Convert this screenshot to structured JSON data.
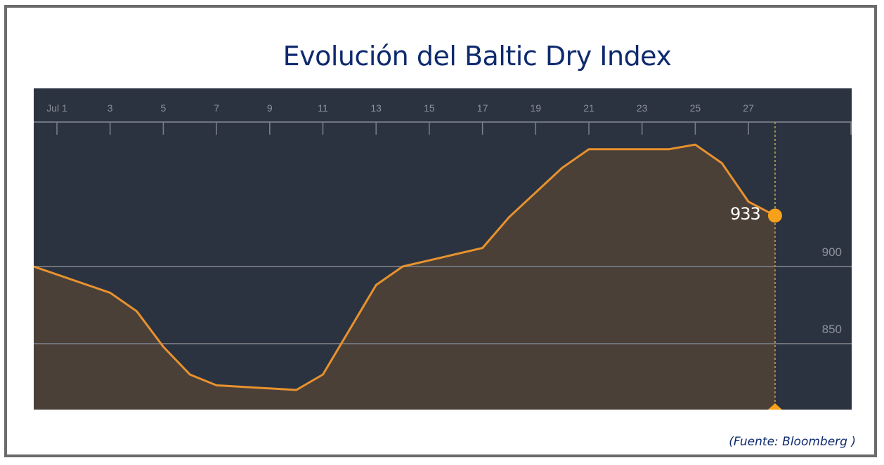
{
  "title": "Evolución del Baltic Dry Index",
  "source": "(Fuente: Bloomberg )",
  "colors": {
    "title": "#0f2a6e",
    "panel_bg": "#2b3340",
    "area_fill": "#4a4038",
    "line": "#e8922e",
    "marker": "#f7a11a",
    "gridline": "#6f7279",
    "axis_text": "#8c929b",
    "frame": "#6b6b6b"
  },
  "x_axis": {
    "tick_labels": [
      "Jul 1",
      "3",
      "5",
      "7",
      "9",
      "11",
      "13",
      "15",
      "17",
      "19",
      "21",
      "23",
      "25",
      "27"
    ]
  },
  "y_axis": {
    "tick_labels": [
      "900",
      "850"
    ]
  },
  "current_value": {
    "label": "933",
    "date": "Jul 28"
  },
  "chart_data": {
    "type": "area",
    "title": "Evolución del Baltic Dry Index",
    "xlabel": "",
    "ylabel": "",
    "x": [
      "Jun 30",
      "Jul 3",
      "Jul 4",
      "Jul 5",
      "Jul 6",
      "Jul 7",
      "Jul 10",
      "Jul 11",
      "Jul 13",
      "Jul 14",
      "Jul 17",
      "Jul 18",
      "Jul 20",
      "Jul 21",
      "Jul 24",
      "Jul 25",
      "Jul 26",
      "Jul 27",
      "Jul 28"
    ],
    "series": [
      {
        "name": "Baltic Dry Index",
        "values": [
          900,
          883,
          871,
          848,
          830,
          823,
          820,
          830,
          888,
          900,
          912,
          932,
          964,
          976,
          976,
          979,
          967,
          942,
          933
        ]
      }
    ],
    "x_tick_labels": [
      "Jul 1",
      "3",
      "5",
      "7",
      "9",
      "11",
      "13",
      "15",
      "17",
      "19",
      "21",
      "23",
      "25",
      "27"
    ],
    "y_tick_labels": [
      900,
      850
    ],
    "ylim": [
      807,
      1015
    ],
    "grid": "horizontal at 850 and 900",
    "annotations": [
      {
        "text": "933",
        "x": "Jul 28",
        "y": 933
      }
    ],
    "source": "(Fuente: Bloomberg )"
  }
}
